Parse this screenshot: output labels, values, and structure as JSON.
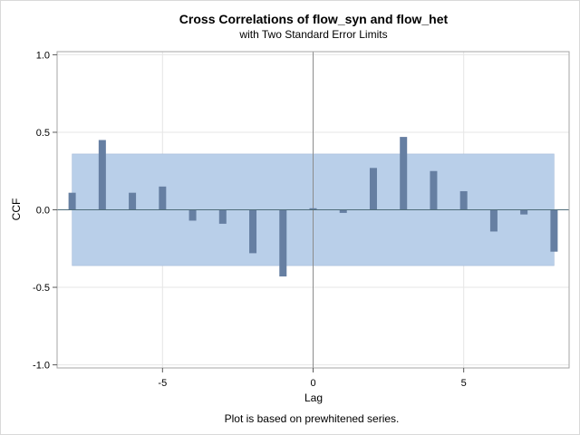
{
  "chart_data": {
    "type": "bar",
    "title": "Cross Correlations of flow_syn and flow_het",
    "subtitle": "with Two Standard Error Limits",
    "xlabel": "Lag",
    "ylabel": "CCF",
    "footnote": "Plot is based on prewhitened series.",
    "xlim": [
      -8.5,
      8.5
    ],
    "ylim": [
      -1.02,
      1.02
    ],
    "x_ticks": [
      -5,
      0,
      5
    ],
    "x_tick_labels": [
      "-5",
      "0",
      "5"
    ],
    "y_ticks": [
      -1.0,
      -0.5,
      0.0,
      0.5,
      1.0
    ],
    "y_tick_labels": [
      "-1.0",
      "-0.5",
      "0.0",
      "0.5",
      "1.0"
    ],
    "grid": true,
    "x": [
      -8,
      -7,
      -6,
      -5,
      -4,
      -3,
      -2,
      -1,
      0,
      1,
      2,
      3,
      4,
      5,
      6,
      7,
      8
    ],
    "values": [
      0.11,
      0.45,
      0.11,
      0.15,
      -0.07,
      -0.09,
      -0.28,
      -0.43,
      0.01,
      -0.02,
      0.27,
      0.47,
      0.25,
      0.12,
      -0.14,
      -0.03,
      -0.27
    ],
    "std_error_band": {
      "x_range": [
        -8,
        8
      ],
      "upper": 0.36,
      "lower": -0.36
    },
    "colors": {
      "bar": "#667fa2",
      "band": "#b9cfe9",
      "grid": "#e6e6e6",
      "ref_line": "#8c8c8c",
      "zero_line": "#4f6d7a"
    }
  }
}
